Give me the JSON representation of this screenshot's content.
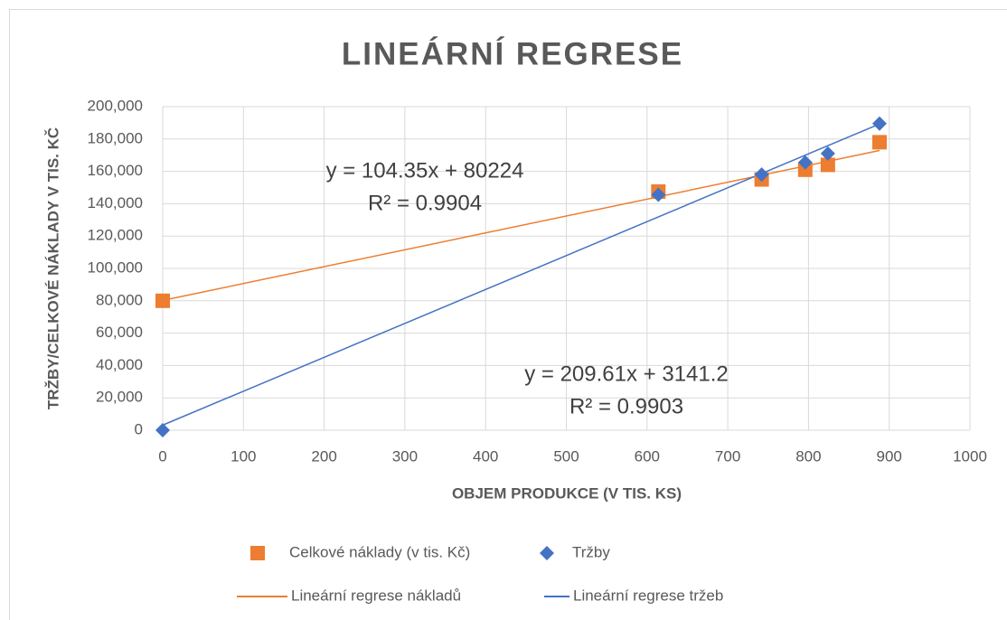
{
  "chart_data": {
    "type": "scatter",
    "title": "LINEÁRNÍ REGRESE",
    "x_label": "OBJEM PRODUKCE (V TIS. KS)",
    "y_label": "TRŽBY/CELKOVÉ NÁKLADY V TIS. KČ",
    "series": [
      {
        "name": "Celkové náklady (v tis. Kč)",
        "color": "#ed7d31",
        "marker": "square",
        "x": [
          0,
          614,
          742,
          796,
          824,
          888
        ],
        "values": [
          80000,
          147500,
          155000,
          161000,
          164000,
          178000
        ]
      },
      {
        "name": "Tržby",
        "color": "#4472c4",
        "marker": "diamond",
        "x": [
          0,
          614,
          742,
          796,
          824,
          888
        ],
        "values": [
          0,
          145500,
          158000,
          165500,
          171000,
          189500
        ]
      }
    ],
    "trendlines": [
      {
        "name": "Lineární regrese nákladů",
        "color": "#ed7d31",
        "x": [
          0,
          888
        ],
        "values": [
          80224,
          172887
        ],
        "equation": "y = 104.35x + 80224",
        "r2": "R² = 0.9904"
      },
      {
        "name": "Lineární regrese tržeb",
        "color": "#4472c4",
        "x": [
          0,
          888
        ],
        "values": [
          3141.2,
          189275
        ],
        "equation": "y = 209.61x + 3141.2",
        "r2": "R² = 0.9903"
      }
    ],
    "xlim": [
      0,
      1000
    ],
    "xticks": [
      0,
      100,
      200,
      300,
      400,
      500,
      600,
      700,
      800,
      900,
      1000
    ],
    "ylim": [
      0,
      200000
    ],
    "yticks": [
      0,
      {
        "value": 20000,
        "label": "20,000"
      },
      {
        "value": 40000,
        "label": "40,000"
      },
      {
        "value": 60000,
        "label": "60,000"
      },
      {
        "value": 80000,
        "label": "80,000"
      },
      {
        "value": 100000,
        "label": "100,000"
      },
      {
        "value": 120000,
        "label": "120,000"
      },
      {
        "value": 140000,
        "label": "140,000"
      },
      {
        "value": 160000,
        "label": "160,000"
      },
      {
        "value": 180000,
        "label": "180,000"
      },
      {
        "value": 200000,
        "label": "200,000"
      }
    ],
    "grid": true,
    "legend": "bottom"
  }
}
